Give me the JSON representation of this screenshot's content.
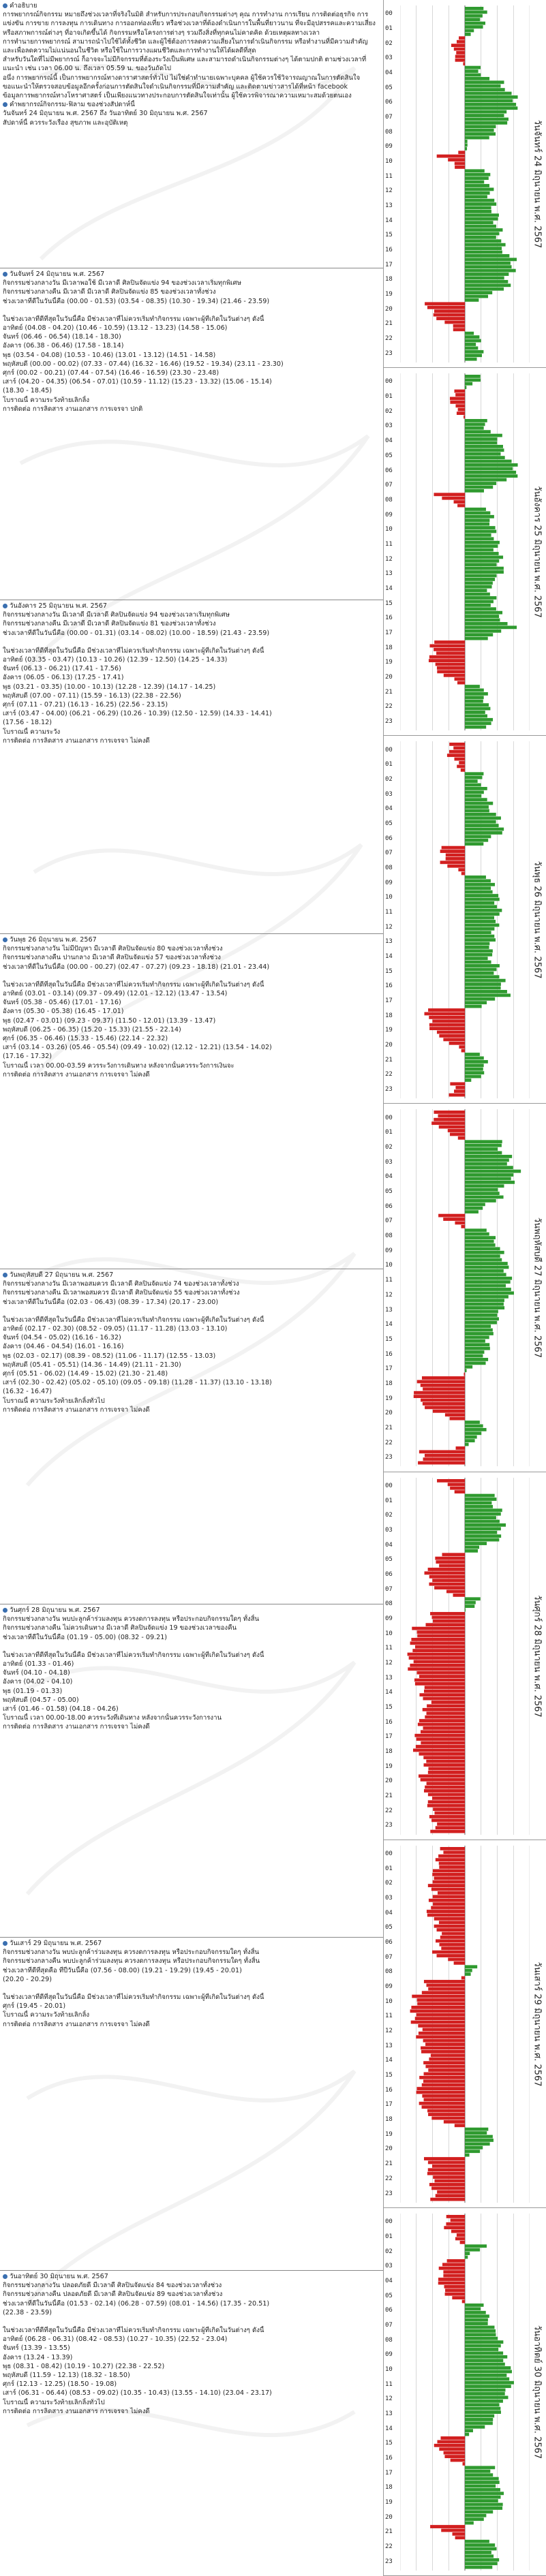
{
  "left": {
    "intro": {
      "title": "คำอธิบาย",
      "paragraphs": [
        "การพยากรณ์กิจกรรม หมายถึงช่วงเวลาที่จริงในมิติ สำหรับการประกอบกิจกรรมต่างๆ คุณ การทำงาน การเรียน การติดต่อธุรกิจ การแข่งขัน การขาย การลงทุน การเดินทาง การออกท่องเที่ยว หรือช่วงเวลาที่ต้องดำเนินการในพื้นที่ยาวนาน ที่จะมีอุปสรรคและความเสี่ยง หรือสภาพการณ์ต่างๆ ที่อาจเกิดขึ้นได้ กิจกรรมหรือโครงการต่างๆ รวมถึงสิ่งที่ทุกคนไม่คาดคิด ด้วยเหตุผลทางเวลา",
        "การทำนายการพยากรณ์ สามารถนำไปใช้ได้ทั้งชีวิต และผู้ใช้ต้องการลดความเสี่ยงในการดำเนินกิจกรรม หรือทำงานที่มีความสำคัญ และเพื่อลดความไม่แน่นอนในชีวิต หรือใช้ในการวางแผนชีวิตและการทำงานให้ได้ผลดีที่สุด",
        "สำหรับวันใดที่ไม่มีพยากรณ์ ก็อาจจะไม่มีกิจกรรมที่ต้องระวังเป็นพิเศษ และสามารถดำเนินกิจกรรมต่างๆ ได้ตามปกติ ตามช่วงเวลาที่แนะนำ เช่น เวลา 06.00 น. ถึงเวลา 05.59 น. ของวันถัดไป",
        "อนึ่ง การพยากรณ์นี้ เป็นการพยากรณ์ทางดาราศาสตร์ทั่วไป ไม่ใช่คำทำนายเฉพาะบุคคล ผู้ใช้ควรใช้วิจารณญาณในการตัดสินใจ",
        "ขอแนะนำให้ตรวจสอบข้อมูลอีกครั้งก่อนการตัดสินใจดำเนินกิจกรรมที่มีความสำคัญ และติดตามข่าวสารได้ที่หน้า facebook",
        "ข้อมูลการพยากรณ์ทางโหราศาสตร์ เป็นเพียงแนวทางประกอบการตัดสินใจเท่านั้น ผู้ใช้ควรพิจารณาความเหมาะสมด้วยตนเอง"
      ],
      "range_title": "คำพยากรณ์กิจกรรม-ฟิลาม ของช่วงสัปดาห์นี้",
      "range_text": "วันจันทร์ 24 มิถุนายน พ.ศ. 2567 ถึง วันอาทิตย์ 30 มิถุนายน พ.ศ. 2567",
      "range_sub": "สัปดาห์นี้ ควรระวังเรื่อง สุขภาพ และอุบัติเหตุ"
    },
    "days": [
      {
        "title": "วันจันทร์ 24 มิถุนายน พ.ศ. 2567",
        "lines": [
          "กิจกรรมช่วงกลางวัน มีเวลาพอใช้ มีเวลาดี ศิลปินจัดแข่ง 94 ของช่วงเวลาเริ่มทุกพิเศษ",
          "กิจกรรมช่วงกลางคืน มีเวลาดี มีเวลาดี ศิลปินจัดแข่ง 85 ของช่วงเวลาทั้งช่วง",
          "ช่วงเวลาที่ดีในวันนี้คือ (00.00 - 01.53) (03.54 - 08.35) (10.30 - 19.34) (21.46 - 23.59)",
          "",
          "ในช่วงเวลาที่ดีที่สุดในวันนี้คือ มีช่วงเวลาที่ไม่ควรเริ่มทำกิจกรรม เฉพาะผู้ที่เกิดในวันต่างๆ ดังนี้",
          "อาทิตย์  (04.08 - 04.20) (10.46 - 10.59) (13.12 - 13.23) (14.58 - 15.06)",
          "จันทร์   (06.46 - 06.54) (18.14 - 18.30)",
          "อังคาร   (06.38 - 06.46) (17.58 - 18.14)",
          "พุธ       (03.54 - 04.08) (10.53 - 10.46) (13.01 - 13.12) (14.51 - 14.58)",
          "พฤหัสบดี (00.00 - 00.02) (07.33 - 07.44) (16.32 - 16.46) (19.52 - 19.34) (23.11 - 23.30)",
          "ศุกร์     (00.02 - 00.21) (07.44 - 07.54) (16.46 - 16.59) (23.30 - 23.48)",
          "เสาร์    (04.20 - 04.35) (06.54 - 07.01) (10.59 - 11.12) (15.23 - 13.32) (15.06 - 15.14)",
          "          (18.30 - 18.45)",
          "โบราณนี้  ความระวังท้ายเลิกลิ้ง",
          "การติดต่อ  การลิดสาร งานเอกสาร การเจรจา ปกติ"
        ]
      },
      {
        "title": "วันอังคาร 25 มิถุนายน พ.ศ. 2567",
        "lines": [
          "กิจกรรมช่วงกลางวัน มีเวลาดี มีเวลาดี ศิลปินจัดแข่ง 94 ของช่วงเวลาเริ่มทุกพิเศษ",
          "กิจกรรมช่วงกลางคืน มีเวลาดี มีเวลาดี ศิลปินจัดแข่ง 81 ของช่วงเวลาทั้งช่วง",
          "ช่วงเวลาที่ดีในวันนี้คือ (00.00 - 01.31) (03.14 - 08.02) (10.00 - 18.59) (21.43 - 23.59)",
          "",
          "ในช่วงเวลาที่ดีที่สุดในวันนี้คือ มีช่วงเวลาที่ไม่ควรเริ่มทำกิจกรรม เฉพาะผู้ที่เกิดในวันต่างๆ ดังนี้",
          "อาทิตย์  (03.35 - 03.47) (10.13 - 10.26) (12.39 - 12.50) (14.25 - 14.33)",
          "จันทร์   (06.13 - 06.21) (17.41 - 17.56)",
          "อังคาร   (06.05 - 06.13) (17.25 - 17.41)",
          "พุธ       (03.21 - 03.35) (10.00 - 10.13) (12.28 - 12.39) (14.17 - 14.25)",
          "พฤหัสบดี (07.00 - 07.11) (15.59 - 16.13) (22.38 - 22.56)",
          "ศุกร์     (07.11 - 07.21) (16.13 - 16.25) (22.56 - 23.15)",
          "เสาร์    (03.47 - 04.00) (06.21 - 06.29) (10.26 - 10.39) (12.50 - 12.59) (14.33 - 14.41)",
          "          (17.56 - 18.12)",
          "โบราณนี้  ความระวัง",
          "การติดต่อ  การลิดสาร งานเอกสาร การเจรจา ไม่คงดี"
        ]
      },
      {
        "title": "วันพุธ 26 มิถุนายน พ.ศ. 2567",
        "lines": [
          "กิจกรรมช่วงกลางวัน ไม่มีปัญหา มีเวลาดี ศิลปินจัดแข่ง 80 ของช่วงเวลาทั้งช่วง",
          "กิจกรรมช่วงกลางคืน ปานกลาง มีเวลาดี ศิลปินจัดแข่ง 57 ของช่วงเวลาทั้งช่วง",
          "ช่วงเวลาที่ดีในวันนี้คือ (00.00 - 00.27) (02.47 - 07.27) (09.23 - 18.18) (21.01 - 23.44)",
          "",
          "ในช่วงเวลาที่ดีที่สุดในวันนี้คือ มีช่วงเวลาที่ไม่ควรเริ่มทำกิจกรรม เฉพาะผู้ที่เกิดในวันต่างๆ ดังนี้",
          "อาทิตย์  (03.01 - 03.14) (09.37 - 09.49) (12.01 - 12.12) (13.47 - 13.54)",
          "จันทร์   (05.38 - 05.46) (17.01 - 17.16)",
          "อังคาร   (05.30 - 05.38) (16.45 - 17.01)",
          "พุธ       (02.47 - 03.01) (09.23 - 09.37) (11.50 - 12.01) (13.39 - 13.47)",
          "พฤหัสบดี (06.25 - 06.35) (15.20 - 15.33) (21.55 - 22.14)",
          "ศุกร์     (06.35 - 06.46) (15.33 - 15.46) (22.14 - 22.32)",
          "เสาร์    (03.14 - 03.26) (05.46 - 05.54) (09.49 - 10.02) (12.12 - 12.21) (13.54 - 14.02)",
          "          (17.16 - 17.32)",
          "โบราณนี้  เวลา 00.00-03.59 ควรระวังการเดินทาง หลังจากนั้นควรระวังการเงินจะ",
          "การติดต่อ  การลิดสาร งานเอกสาร การเจรจา ไม่คงดี"
        ]
      },
      {
        "title": "วันพฤหัสบดี 27 มิถุนายน พ.ศ. 2567",
        "lines": [
          "กิจกรรมช่วงกลางวัน มีเวลาพอสมควร มีเวลาดี ศิลปินจัดแข่ง 74 ของช่วงเวลาทั้งช่วง",
          "กิจกรรมช่วงกลางคืน มีเวลาพอสมควร มีเวลาดี ศิลปินจัดแข่ง 55 ของช่วงเวลาทั้งช่วง",
          "ช่วงเวลาที่ดีในวันนี้คือ (02.03 - 06.43) (08.39 - 17.34) (20.17 - 23.00)",
          "",
          "ในช่วงเวลาที่ดีที่สุดในวันนี้คือ มีช่วงเวลาที่ไม่ควรเริ่มทำกิจกรรม เฉพาะผู้ที่เกิดในวันต่างๆ ดังนี้",
          "อาทิตย์  (02.17 - 02.30) (08.52 - 09.05) (11.17 - 11.28) (13.03 - 13.10)",
          "จันทร์   (04.54 - 05.02) (16.16 - 16.32)",
          "อังคาร   (04.46 - 04.54) (16.01 - 16.16)",
          "พุธ       (02.03 - 02.17) (08.39 - 08.52) (11.06 - 11.17) (12.55 - 13.03)",
          "พฤหัสบดี (05.41 - 05.51) (14.36 - 14.49) (21.11 - 21.30)",
          "ศุกร์     (05.51 - 06.02) (14.49 - 15.02) (21.30 - 21.48)",
          "เสาร์    (02.30 - 02.42) (05.02 - 05.10) (09.05 - 09.18) (11.28 - 11.37) (13.10 - 13.18)",
          "          (16.32 - 16.47)",
          "โบราณนี้  ความระวังท้ายเลิกลิ้งทั่วไป",
          "การติดต่อ  การลิดสาร งานเอกสาร การเจรจา ไม่คงดี"
        ]
      },
      {
        "title": "วันศุกร์ 28 มิถุนายน พ.ศ. 2567",
        "lines": [
          "กิจกรรมช่วงกลางวัน พบปะลูกค้าร่วมลงทุน ควรงดการลงทุน หรือประกอบกิจกรรมใดๆ ทั้งสิ้น",
          "กิจกรรมช่วงกลางคืน ไม่ควรเดินทาง มีเวลาดี ศิลปินจัดแข่ง 19 ของช่วงเวลาของคืน",
          "ช่วงเวลาที่ดีในวันนี้คือ (01.19 - 05.00) (08.32 - 09.21)",
          "",
          "ในช่วงเวลาที่ดีที่สุดในวันนี้คือ มีช่วงเวลาที่ไม่ควรเริ่มทำกิจกรรม เฉพาะผู้ที่เกิดในวันต่างๆ ดังนี้",
          "อาทิตย์  (01.33 - 01.46)",
          "จันทร์   (04.10 - 04.18)",
          "อังคาร   (04.02 - 04.10)",
          "พุธ       (01.19 - 01.33)",
          "พฤหัสบดี (04.57 - 05.00)",
          "เสาร์    (01.46 - 01.58) (04.18 - 04.26)",
          "โบราณนี้  เวลา 00.00-18.00 ควรระวังที่เดินทาง หลังจากนั้นควรระวังการงาน",
          "การติดต่อ  การลิดสาร งานเอกสาร การเจรจา ไม่คงดี"
        ]
      },
      {
        "title": "วันเสาร์ 29 มิถุนายน พ.ศ. 2567",
        "lines": [
          "กิจกรรมช่วงกลางวัน พบปะลูกค้าร่วมลงทุน ควรงดการลงทุน หรือประกอบกิจกรรมใดๆ ทั้งสิ้น",
          "กิจกรรมช่วงกลางคืน พบปะลูกค้าร่วมลงทุน ควรงดการลงทุน หรือประกอบกิจกรรมใดๆ ทั้งสิ้น",
          "ช่วงเวลาที่ดีที่สุดคือ ที่ปี่วันนี้คือ (07.56 - 08.00) (19.21 - 19.29) (19.45 - 20.01)",
          "          (20.20 - 20.29)",
          "",
          "ในช่วงเวลาที่ดีที่สุดในวันนี้คือ มีช่วงเวลาที่ไม่ควรเริ่มทำกิจกรรม เฉพาะผู้ที่เกิดในวันต่างๆ ดังนี้",
          "ศุกร์     (19.45 - 20.01)",
          "โบราณนี้  ความระวังท้ายเลิกลิ้ง",
          "การติดต่อ  การลิดสาร งานเอกสาร การเจรจา ไม่คงดี"
        ]
      },
      {
        "title": "วันอาทิตย์ 30 มิถุนายน พ.ศ. 2567",
        "lines": [
          "กิจกรรมช่วงกลางวัน ปลอดภัยดี มีเวลาดี ศิลปินจัดแข่ง 84 ของช่วงเวลาทั้งช่วง",
          "กิจกรรมช่วงกลางคืน ปลอดภัยดี มีเวลาดี ศิลปินจัดแข่ง 89 ของช่วงเวลาทั้งช่วง",
          "ช่วงเวลาที่ดีในวันนี้คือ (01.53 - 02.14) (06.28 - 07.59) (08.01 - 14.56) (17.35 - 20.51)",
          "          (22.38 - 23.59)",
          "",
          "ในช่วงเวลาที่ดีที่สุดในวันนี้คือ มีช่วงเวลาที่ไม่ควรเริ่มทำกิจกรรม เฉพาะผู้ที่เกิดในวันต่างๆ ดังนี้",
          "อาทิตย์  (06.28 - 06.31) (08.42 - 08.53) (10.27 - 10.35) (22.52 - 23.04)",
          "จันทร์   (13.39 - 13.55)",
          "อังคาร   (13.24 - 13.39)",
          "พุธ       (08.31 - 08.42) (10.19 - 10.27) (22.38 - 22.52)",
          "พฤหัสบดี (11.59 - 12.13) (18.32 - 18.50)",
          "ศุกร์     (12.13 - 12.25) (18.50 - 19.08)",
          "เสาร์    (06.31 - 06.44) (08.53 - 09.02) (10.35 - 10.43) (13.55 - 14.10) (23.04 - 23.17)",
          "โบราณนี้  ความระวังท้ายเลิกลิ้งทั่วไป",
          "การติดต่อ  การลิดสาร งานเอกสาร การเจรจา ไม่คงดี"
        ]
      }
    ]
  },
  "chart_data": {
    "type": "bar",
    "orientation": "horizontal",
    "hour_ticks": [
      "00",
      "01",
      "02",
      "03",
      "04",
      "05",
      "06",
      "07",
      "08",
      "09",
      "10",
      "11",
      "12",
      "13",
      "14",
      "15",
      "16",
      "17",
      "18",
      "19",
      "20",
      "21",
      "22",
      "23"
    ],
    "colors": {
      "good": "#2f9a2f",
      "bad": "#d21f1f",
      "grid": "#bdbdbd"
    },
    "days": [
      {
        "label": "วันจันทร์ 24 มิถุนายน พ.ศ. 2567",
        "values": [
          30,
          30,
          -15,
          -20,
          20,
          60,
          85,
          70,
          55,
          10,
          -40,
          35,
          40,
          45,
          50,
          55,
          60,
          80,
          70,
          65,
          -60,
          -40,
          20,
          25
        ]
      },
      {
        "label": "วันอังคาร 25 มิถุนายน พ.ศ. 2567",
        "values": [
          25,
          -20,
          -20,
          30,
          55,
          60,
          85,
          70,
          -45,
          40,
          45,
          50,
          55,
          60,
          40,
          45,
          55,
          80,
          -50,
          -55,
          -40,
          30,
          35,
          40
        ]
      },
      {
        "label": "วันพุธ 26 มิถุนายน พ.ศ. 2567",
        "values": [
          -25,
          -20,
          25,
          30,
          40,
          55,
          60,
          -35,
          -35,
          40,
          50,
          55,
          50,
          45,
          40,
          50,
          60,
          70,
          -60,
          -55,
          -30,
          30,
          35,
          -20
        ]
      },
      {
        "label": "วันพฤหัสบดี 27 มิถุนายน พ.ศ. 2567",
        "values": [
          -50,
          -45,
          55,
          70,
          85,
          60,
          50,
          -40,
          40,
          55,
          65,
          70,
          75,
          60,
          50,
          40,
          35,
          30,
          -70,
          -80,
          -60,
          30,
          25,
          -70
        ]
      },
      {
        "label": "วันศุกร์ 28 มิถุนายน พ.ศ. 2567",
        "values": [
          -45,
          45,
          55,
          60,
          50,
          -40,
          -60,
          -55,
          30,
          -50,
          -80,
          -85,
          -90,
          -80,
          -70,
          -60,
          -70,
          -75,
          -80,
          -60,
          -70,
          -60,
          -55,
          -50
        ]
      },
      {
        "label": "วันเสาร์ 29 มิถุนายน พ.ศ. 2567",
        "values": [
          -40,
          -45,
          -55,
          -50,
          -60,
          -45,
          -40,
          -50,
          25,
          -60,
          -80,
          -85,
          -75,
          -70,
          -60,
          -65,
          -75,
          -70,
          -60,
          40,
          45,
          -60,
          -55,
          -50
        ]
      },
      {
        "label": "วันอาทิตย์ 30 มิถุนายน พ.ศ. 2567",
        "values": [
          -30,
          -25,
          30,
          -35,
          -40,
          -35,
          30,
          40,
          55,
          60,
          70,
          75,
          65,
          55,
          40,
          -45,
          -40,
          45,
          55,
          60,
          50,
          -50,
          45,
          50
        ]
      }
    ]
  }
}
